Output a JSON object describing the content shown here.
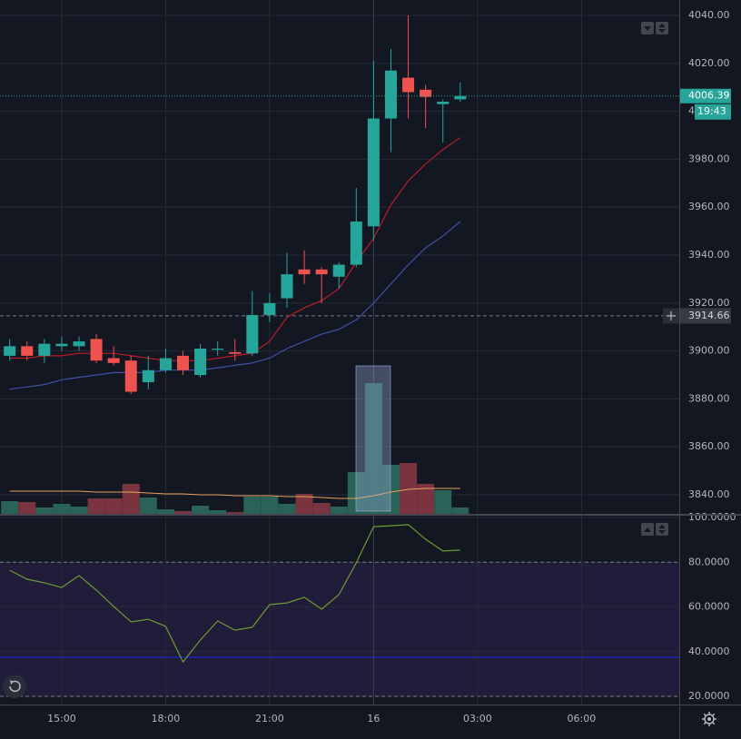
{
  "chart_data": {
    "type": "candlestick",
    "x": [
      13.5,
      14,
      14.5,
      15,
      15.5,
      16,
      16.5,
      17,
      17.5,
      18,
      18.5,
      19,
      19.5,
      20,
      20.5,
      21,
      21.5,
      22,
      22.5,
      23,
      23.5,
      24,
      24.5,
      25,
      25.5,
      26,
      26.5
    ],
    "open": [
      3898,
      3902,
      3898,
      3902,
      3902,
      3905,
      3897,
      3896,
      3887,
      3892,
      3898,
      3890,
      3900.5,
      3899.5,
      3899,
      3915,
      3922,
      3934,
      3934,
      3931,
      3936,
      3952,
      3997,
      4014,
      4009,
      4003,
      4005
    ],
    "high": [
      3905,
      3904,
      3905,
      3906,
      3906,
      3907,
      3902,
      3898,
      3898,
      3901,
      3900,
      3903,
      3904,
      3905,
      3925,
      3924,
      3941,
      3942,
      3935,
      3937,
      3968,
      4021,
      4026,
      4040,
      4011,
      4005,
      4012
    ],
    "low": [
      3896,
      3896,
      3895,
      3900,
      3900,
      3895,
      3894,
      3882,
      3884,
      3891,
      3890,
      3889,
      3898,
      3896,
      3898,
      3912,
      3918,
      3928,
      3920,
      3926,
      3935,
      3946,
      3983,
      3997,
      3993,
      3987,
      4004
    ],
    "close": [
      3902,
      3898,
      3903,
      3903,
      3904,
      3896,
      3895,
      3883,
      3892,
      3897,
      3892,
      3901,
      3901,
      3898.8,
      3915,
      3920,
      3932,
      3932,
      3932,
      3936,
      3954,
      3997,
      4017,
      4008,
      4006,
      4004,
      4006.39
    ],
    "up_color": "#26a69a",
    "down_color": "#ef5350",
    "volume": [
      140,
      130,
      70,
      110,
      80,
      170,
      170,
      330,
      180,
      50,
      30,
      90,
      40,
      20,
      190,
      190,
      110,
      220,
      120,
      80,
      460,
      1440,
      540,
      560,
      330,
      260,
      70
    ],
    "volume_up_color": "#2b6257",
    "volume_down_color": "#7a3440",
    "volume_ylim": [
      0,
      5660
    ],
    "volume_ma": {
      "color": "#e8a25a",
      "values": [
        250,
        250,
        250,
        250,
        250,
        240,
        240,
        240,
        230,
        220,
        220,
        210,
        210,
        200,
        200,
        200,
        190,
        190,
        180,
        170,
        170,
        200,
        240,
        270,
        280,
        280,
        280
      ]
    },
    "ma_fast": {
      "color": "#b71c2c",
      "values": [
        3897,
        3897,
        3898,
        3898,
        3899,
        3899,
        3899,
        3898,
        3897,
        3896,
        3896,
        3896,
        3897,
        3898,
        3899,
        3904,
        3914,
        3918,
        3921,
        3926,
        3937,
        3947,
        3961,
        3971,
        3978,
        3984,
        3989
      ]
    },
    "ma_slow": {
      "color": "#3f51a5",
      "values": [
        3884,
        3885,
        3886,
        3888,
        3889,
        3890,
        3891,
        3891,
        3891,
        3892,
        3892,
        3892,
        3893,
        3894,
        3895,
        3897,
        3901,
        3904,
        3907,
        3909,
        3913,
        3920,
        3928,
        3936,
        3943,
        3948,
        3954
      ]
    },
    "last_price": 4006.39,
    "countdown": "19:43",
    "crosshair_price": 3914.66,
    "crosshair_x": 24,
    "xlim": [
      13.22,
      32.82
    ],
    "xticks": [
      {
        "value": 15,
        "label": "15:00"
      },
      {
        "value": 18,
        "label": "18:00"
      },
      {
        "value": 21,
        "label": "21:00"
      },
      {
        "value": 24,
        "label": "16"
      },
      {
        "value": 27,
        "label": "03:00"
      },
      {
        "value": 30,
        "label": "06:00"
      }
    ],
    "ylim": [
      3832.05,
      4046.44
    ],
    "yticks": [
      {
        "value": 3840,
        "label": "3840.00"
      },
      {
        "value": 3860,
        "label": "3860.00"
      },
      {
        "value": 3880,
        "label": "3880.00"
      },
      {
        "value": 3900,
        "label": "3900.00"
      },
      {
        "value": 3920,
        "label": "3920.00"
      },
      {
        "value": 3940,
        "label": "3940.00"
      },
      {
        "value": 3960,
        "label": "3960.00"
      },
      {
        "value": 3980,
        "label": "3980.00"
      },
      {
        "value": 4000,
        "label": "4000.00"
      },
      {
        "value": 4020,
        "label": "4020.00"
      },
      {
        "value": 4040,
        "label": "4040.00"
      }
    ],
    "grid": true,
    "rsi": {
      "color": "#6b9a35",
      "values": [
        76.4,
        72.4,
        70.8,
        68.7,
        74,
        67.5,
        60.2,
        53.3,
        54.5,
        51.3,
        35.4,
        45.2,
        53.7,
        49.6,
        50.9,
        61,
        61.8,
        64.3,
        59,
        65.5,
        79.7,
        95.9,
        96.3,
        96.8,
        90.3,
        85,
        85.4
      ],
      "ylim": [
        16.35,
        101.22
      ],
      "yticks": [
        {
          "value": 20,
          "label": "20.0000"
        },
        {
          "value": 40,
          "label": "40.0000"
        },
        {
          "value": 60,
          "label": "60.0000"
        },
        {
          "value": 80,
          "label": "80.0000"
        },
        {
          "value": 100,
          "label": "100.0000"
        }
      ],
      "band": [
        20,
        80
      ],
      "band_color": "#221c3b",
      "midline": 37.5,
      "midline_color": "#2222b0"
    }
  }
}
